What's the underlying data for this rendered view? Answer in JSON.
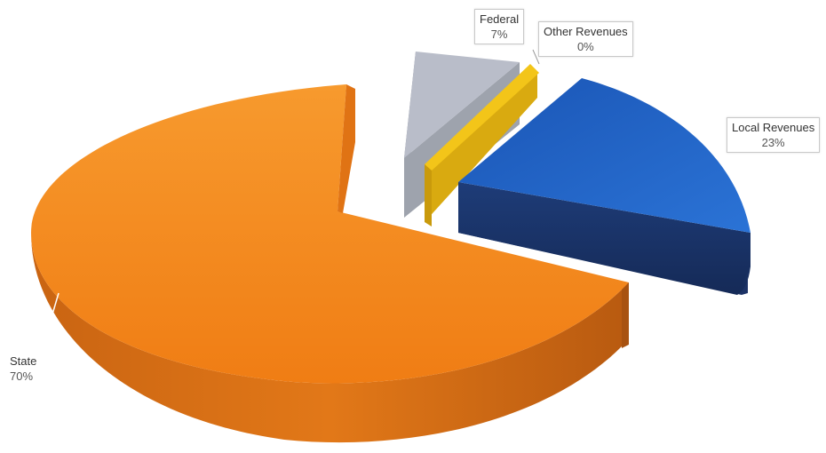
{
  "chart_data": {
    "type": "pie",
    "style": "3d-exploded",
    "title": "",
    "legend": "none",
    "slices": [
      {
        "key": "state",
        "label": "State",
        "value": 70,
        "value_label": "70%",
        "color": "#f28a1c"
      },
      {
        "key": "local",
        "label": "Local Revenues",
        "value": 23,
        "value_label": "23%",
        "color": "#1f5fbd"
      },
      {
        "key": "other",
        "label": "Other Revenues",
        "value": 0,
        "value_label": "0%",
        "color": "#f3c519"
      },
      {
        "key": "federal",
        "label": "Federal",
        "value": 7,
        "value_label": "7%",
        "color": "#b9bdc9"
      }
    ]
  }
}
